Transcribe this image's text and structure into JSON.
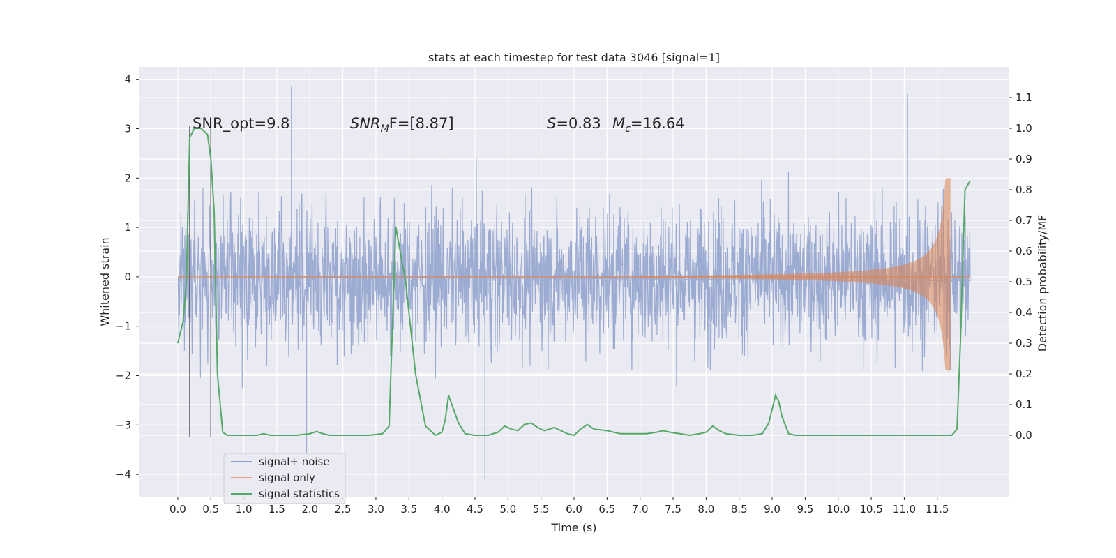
{
  "chart_data": {
    "type": "line",
    "title": "stats at each timestep for test data 3046 [signal=1]",
    "xlabel": "Time (s)",
    "ylabel_left": "Whitened strain",
    "ylabel_right": "Detection probability/MF",
    "xlim": [
      -0.58,
      12.58
    ],
    "ylim_left": [
      -4.45,
      4.25
    ],
    "ylim_right": [
      -0.2,
      1.2
    ],
    "x_ticks": [
      "0.0",
      "0.5",
      "1.0",
      "1.5",
      "2.0",
      "2.5",
      "3.0",
      "3.5",
      "4.0",
      "4.5",
      "5.0",
      "5.5",
      "6.0",
      "6.5",
      "7.0",
      "7.5",
      "8.0",
      "8.5",
      "9.0",
      "9.5",
      "10.0",
      "10.5",
      "11.0",
      "11.5"
    ],
    "y_ticks_left": [
      "4",
      "3",
      "2",
      "1",
      "0",
      "−1",
      "−2",
      "−3",
      "−4"
    ],
    "y_ticks_right": [
      "1.1",
      "1.0",
      "0.9",
      "0.8",
      "0.7",
      "0.6",
      "0.5",
      "0.4",
      "0.3",
      "0.2",
      "0.1",
      "0.0"
    ],
    "grid": true,
    "legend_position": "lower-left",
    "annotations": {
      "snr_opt": "SNR_opt=9.8",
      "snr_mf_main": "SNR",
      "snr_mf_sub": "M",
      "snr_mf_rest": "F=[8.87]",
      "s_main": "S",
      "s_rest": "=0.83",
      "mc_main": "M",
      "mc_sub": "c",
      "mc_rest": "=16.64"
    },
    "vertical_lines_x": [
      0.18,
      0.5
    ],
    "noise_envelope": {
      "t_range": [
        0.0,
        12.0
      ],
      "typical_amplitude": 2.0,
      "peak_values": [
        3.85,
        3.7,
        -4.1,
        -3.6
      ]
    },
    "series": [
      {
        "name": "signal+ noise",
        "color": "#8da0cb",
        "axis": "left"
      },
      {
        "name": "signal only",
        "color": "#dd8452",
        "axis": "left",
        "chirp": {
          "t_start": 7.0,
          "t_merge": 11.7,
          "max_amplitude": 2.0
        }
      },
      {
        "name": "signal statistics",
        "color": "#55a868",
        "axis": "right",
        "x": [
          0.0,
          0.08,
          0.13,
          0.18,
          0.25,
          0.35,
          0.45,
          0.5,
          0.55,
          0.6,
          0.68,
          0.75,
          0.85,
          1.0,
          1.2,
          1.3,
          1.4,
          1.6,
          1.8,
          2.0,
          2.1,
          2.2,
          2.3,
          2.5,
          2.7,
          2.9,
          3.1,
          3.2,
          3.3,
          3.45,
          3.6,
          3.75,
          3.9,
          4.0,
          4.05,
          4.1,
          4.15,
          4.25,
          4.35,
          4.5,
          4.7,
          4.85,
          4.95,
          5.05,
          5.15,
          5.25,
          5.35,
          5.45,
          5.55,
          5.7,
          5.8,
          5.9,
          6.0,
          6.1,
          6.2,
          6.3,
          6.5,
          6.7,
          6.9,
          7.1,
          7.25,
          7.35,
          7.45,
          7.6,
          7.75,
          7.9,
          8.0,
          8.1,
          8.2,
          8.3,
          8.5,
          8.7,
          8.85,
          8.95,
          9.05,
          9.1,
          9.15,
          9.25,
          9.35,
          9.5,
          9.8,
          10.0,
          10.5,
          11.0,
          11.5,
          11.65,
          11.72,
          11.8,
          11.85,
          11.92,
          12.0
        ],
        "y": [
          0.3,
          0.37,
          0.5,
          0.97,
          1.0,
          1.0,
          0.98,
          0.9,
          0.73,
          0.2,
          0.01,
          0.0,
          0.0,
          0.0,
          0.0,
          0.005,
          0.0,
          0.0,
          0.0,
          0.005,
          0.012,
          0.005,
          0.0,
          0.0,
          0.0,
          0.0,
          0.005,
          0.03,
          0.68,
          0.5,
          0.2,
          0.03,
          0.0,
          0.01,
          0.05,
          0.13,
          0.1,
          0.04,
          0.005,
          0.0,
          0.0,
          0.01,
          0.03,
          0.02,
          0.015,
          0.035,
          0.04,
          0.025,
          0.015,
          0.025,
          0.015,
          0.005,
          0.0,
          0.02,
          0.035,
          0.02,
          0.015,
          0.005,
          0.005,
          0.005,
          0.01,
          0.015,
          0.01,
          0.005,
          0.0,
          0.005,
          0.01,
          0.03,
          0.015,
          0.005,
          0.0,
          0.0,
          0.005,
          0.04,
          0.13,
          0.11,
          0.06,
          0.005,
          0.0,
          0.0,
          0.0,
          0.0,
          0.0,
          0.0,
          0.0,
          0.0,
          0.0,
          0.02,
          0.3,
          0.8,
          0.83
        ]
      }
    ]
  }
}
